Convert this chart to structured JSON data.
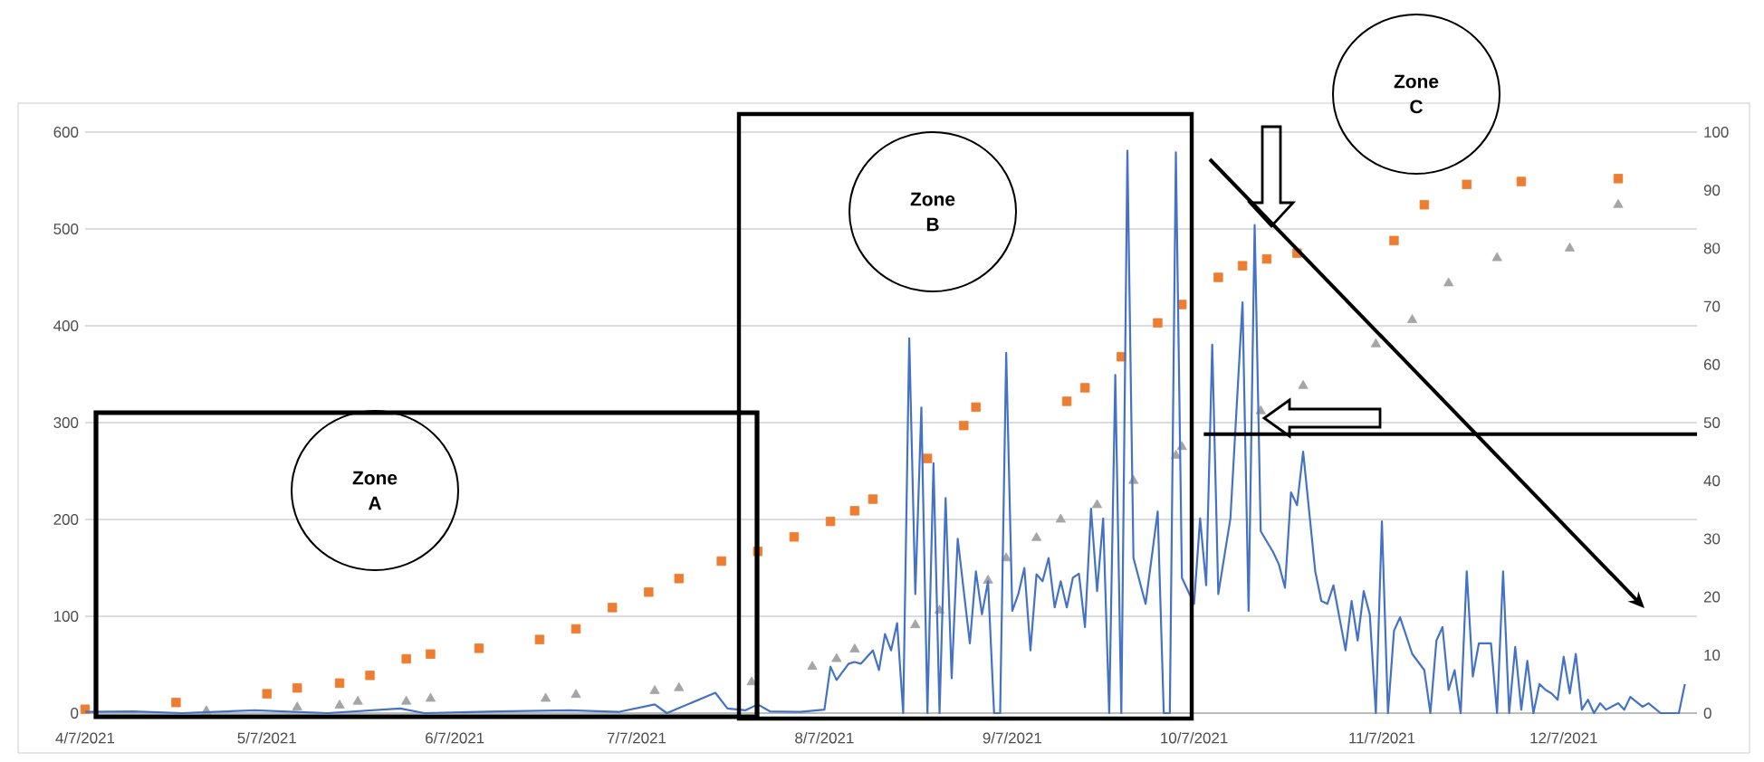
{
  "chart_data": {
    "type": "line",
    "annotations": [
      "Zone A",
      "Zone B",
      "Zone C"
    ],
    "xlim": [
      "2021-04-07",
      "2021-12-29"
    ],
    "xticks": [
      {
        "value": "2021-04-07",
        "label": "4/7/2021"
      },
      {
        "value": "2021-05-07",
        "label": "5/7/2021"
      },
      {
        "value": "2021-06-07",
        "label": "6/7/2021"
      },
      {
        "value": "2021-07-07",
        "label": "7/7/2021"
      },
      {
        "value": "2021-08-07",
        "label": "8/7/2021"
      },
      {
        "value": "2021-09-07",
        "label": "9/7/2021"
      },
      {
        "value": "2021-10-07",
        "label": "10/7/2021"
      },
      {
        "value": "2021-11-07",
        "label": "11/7/2021"
      },
      {
        "value": "2021-12-07",
        "label": "12/7/2021"
      }
    ],
    "ylim": [
      0,
      600
    ],
    "yticks": [
      0,
      100,
      200,
      300,
      400,
      500,
      600
    ],
    "y2lim": [
      0,
      100
    ],
    "y2ticks": [
      0,
      10,
      20,
      30,
      40,
      50,
      60,
      70,
      80,
      90,
      100
    ],
    "grid": "y",
    "ref_lines": [
      {
        "axis": "y2",
        "value": 48,
        "color": "#000000"
      }
    ],
    "series": [
      {
        "type": "scatter",
        "marker": "square",
        "color": "#ed7d31",
        "x": [
          "2021-04-07",
          "2021-04-22",
          "2021-05-07",
          "2021-05-12",
          "2021-05-19",
          "2021-05-24",
          "2021-05-30",
          "2021-06-03",
          "2021-06-11",
          "2021-06-21",
          "2021-06-27",
          "2021-07-03",
          "2021-07-09",
          "2021-07-14",
          "2021-07-21",
          "2021-07-27",
          "2021-08-02",
          "2021-08-08",
          "2021-08-12",
          "2021-08-15",
          "2021-08-24",
          "2021-08-30",
          "2021-09-01",
          "2021-09-16",
          "2021-09-19",
          "2021-09-25",
          "2021-10-01",
          "2021-10-05",
          "2021-10-11",
          "2021-10-15",
          "2021-10-19",
          "2021-10-24",
          "2021-11-09",
          "2021-11-14",
          "2021-11-21",
          "2021-11-30",
          "2021-12-16"
        ],
        "values": [
          4,
          11,
          20,
          26,
          31,
          39,
          56,
          61,
          67,
          76,
          87,
          109,
          125,
          139,
          157,
          167,
          182,
          198,
          209,
          221,
          263,
          297,
          316,
          322,
          336,
          368,
          403,
          422,
          450,
          462,
          469,
          475,
          488,
          525,
          546,
          549,
          552
        ]
      },
      {
        "type": "scatter",
        "marker": "triangle",
        "color": "#a5a5a5",
        "x": [
          "2021-04-27",
          "2021-05-12",
          "2021-05-19",
          "2021-05-22",
          "2021-05-30",
          "2021-06-03",
          "2021-06-22",
          "2021-06-27",
          "2021-07-10",
          "2021-07-14",
          "2021-07-26",
          "2021-08-05",
          "2021-08-09",
          "2021-08-12",
          "2021-08-22",
          "2021-08-26",
          "2021-09-03",
          "2021-09-06",
          "2021-09-11",
          "2021-09-15",
          "2021-09-21",
          "2021-09-27",
          "2021-10-04",
          "2021-10-05",
          "2021-10-18",
          "2021-10-25",
          "2021-11-06",
          "2021-11-12",
          "2021-11-18",
          "2021-11-26",
          "2021-12-08",
          "2021-12-16"
        ],
        "values": [
          2,
          6,
          8,
          12,
          12,
          15,
          15,
          19,
          23,
          26,
          32,
          48,
          56,
          66,
          91,
          106,
          137,
          160,
          181,
          200,
          215,
          240,
          266,
          275,
          312,
          338,
          381,
          406,
          444,
          470,
          480,
          525
        ]
      },
      {
        "marker": "none",
        "axis": "y2",
        "color": "#4472c4",
        "x": [
          "2021-04-07",
          "2021-04-15",
          "2021-04-23",
          "2021-05-05",
          "2021-05-17",
          "2021-05-29",
          "2021-06-02",
          "2021-06-14",
          "2021-06-26",
          "2021-07-04",
          "2021-07-10",
          "2021-07-12",
          "2021-07-20",
          "2021-07-22",
          "2021-07-25",
          "2021-07-27",
          "2021-07-29",
          "2021-08-03",
          "2021-08-07",
          "2021-08-08",
          "2021-08-09",
          "2021-08-11",
          "2021-08-12",
          "2021-08-13",
          "2021-08-15",
          "2021-08-16",
          "2021-08-17",
          "2021-08-18",
          "2021-08-19",
          "2021-08-20",
          "2021-08-21",
          "2021-08-22",
          "2021-08-23",
          "2021-08-24",
          "2021-08-25",
          "2021-08-26",
          "2021-08-27",
          "2021-08-28",
          "2021-08-29",
          "2021-08-31",
          "2021-09-01",
          "2021-09-02",
          "2021-09-03",
          "2021-09-04",
          "2021-09-05",
          "2021-09-06",
          "2021-09-07",
          "2021-09-08",
          "2021-09-09",
          "2021-09-10",
          "2021-09-11",
          "2021-09-12",
          "2021-09-13",
          "2021-09-14",
          "2021-09-15",
          "2021-09-16",
          "2021-09-17",
          "2021-09-18",
          "2021-09-19",
          "2021-09-20",
          "2021-09-21",
          "2021-09-22",
          "2021-09-23",
          "2021-09-24",
          "2021-09-25",
          "2021-09-26",
          "2021-09-27",
          "2021-09-29",
          "2021-10-01",
          "2021-10-02",
          "2021-10-03",
          "2021-10-04",
          "2021-10-05",
          "2021-10-07",
          "2021-10-08",
          "2021-10-09",
          "2021-10-10",
          "2021-10-11",
          "2021-10-13",
          "2021-10-15",
          "2021-10-16",
          "2021-10-17",
          "2021-10-18",
          "2021-10-20",
          "2021-10-21",
          "2021-10-22",
          "2021-10-23",
          "2021-10-24",
          "2021-10-25",
          "2021-10-27",
          "2021-10-28",
          "2021-10-29",
          "2021-10-30",
          "2021-11-01",
          "2021-11-02",
          "2021-11-03",
          "2021-11-04",
          "2021-11-05",
          "2021-11-06",
          "2021-11-07",
          "2021-11-08",
          "2021-11-09",
          "2021-11-10",
          "2021-11-12",
          "2021-11-14",
          "2021-11-15",
          "2021-11-16",
          "2021-11-17",
          "2021-11-18",
          "2021-11-19",
          "2021-11-20",
          "2021-11-21",
          "2021-11-22",
          "2021-11-23",
          "2021-11-25",
          "2021-11-26",
          "2021-11-27",
          "2021-11-28",
          "2021-11-29",
          "2021-11-30",
          "2021-12-01",
          "2021-12-02",
          "2021-12-03",
          "2021-12-04",
          "2021-12-05",
          "2021-12-06",
          "2021-12-07",
          "2021-12-08",
          "2021-12-09",
          "2021-12-10",
          "2021-12-11",
          "2021-12-12",
          "2021-12-13",
          "2021-12-14",
          "2021-12-16",
          "2021-12-17",
          "2021-12-18",
          "2021-12-20",
          "2021-12-21",
          "2021-12-23",
          "2021-12-26",
          "2021-12-27"
        ],
        "values": [
          0.2,
          0.3,
          0,
          0.5,
          0,
          0.8,
          0,
          0.3,
          0.5,
          0.2,
          1.5,
          0,
          3.5,
          0.8,
          0.5,
          1.5,
          0.3,
          0.2,
          0.6,
          8,
          5.7,
          8.5,
          8.8,
          8.5,
          10.8,
          7.4,
          13.6,
          10.8,
          15.5,
          0,
          64.5,
          20.5,
          52.6,
          0,
          43,
          0,
          37,
          6,
          30,
          12,
          24.4,
          17,
          22.7,
          0,
          0,
          62,
          17.6,
          20.5,
          25,
          10.8,
          23.9,
          22.7,
          26.7,
          18.2,
          22.7,
          18.2,
          23.3,
          24,
          14.8,
          35.2,
          21,
          33.5,
          0,
          58.2,
          0,
          96.8,
          26.7,
          18.8,
          34.7,
          0,
          0,
          96.5,
          23.3,
          18.8,
          33.5,
          22,
          63.4,
          20.5,
          33.5,
          70.7,
          17.6,
          84,
          31.3,
          27.8,
          25.6,
          21.6,
          38,
          35.8,
          45,
          24.4,
          19.3,
          18.8,
          22,
          10.8,
          19.3,
          12.5,
          21,
          17,
          0,
          33,
          0,
          14.2,
          16.5,
          10.2,
          7.4,
          0,
          12.5,
          14.8,
          4,
          7.4,
          0,
          24.4,
          6.3,
          12,
          12,
          0,
          24.4,
          0,
          11.4,
          0.6,
          9,
          0,
          5,
          4,
          3.4,
          2.3,
          9.7,
          3.4,
          10.2,
          0.6,
          2.3,
          0,
          1.7,
          0.6,
          1.7,
          0.6,
          2.8,
          1.1,
          1.7,
          0,
          0,
          5
        ]
      }
    ]
  }
}
